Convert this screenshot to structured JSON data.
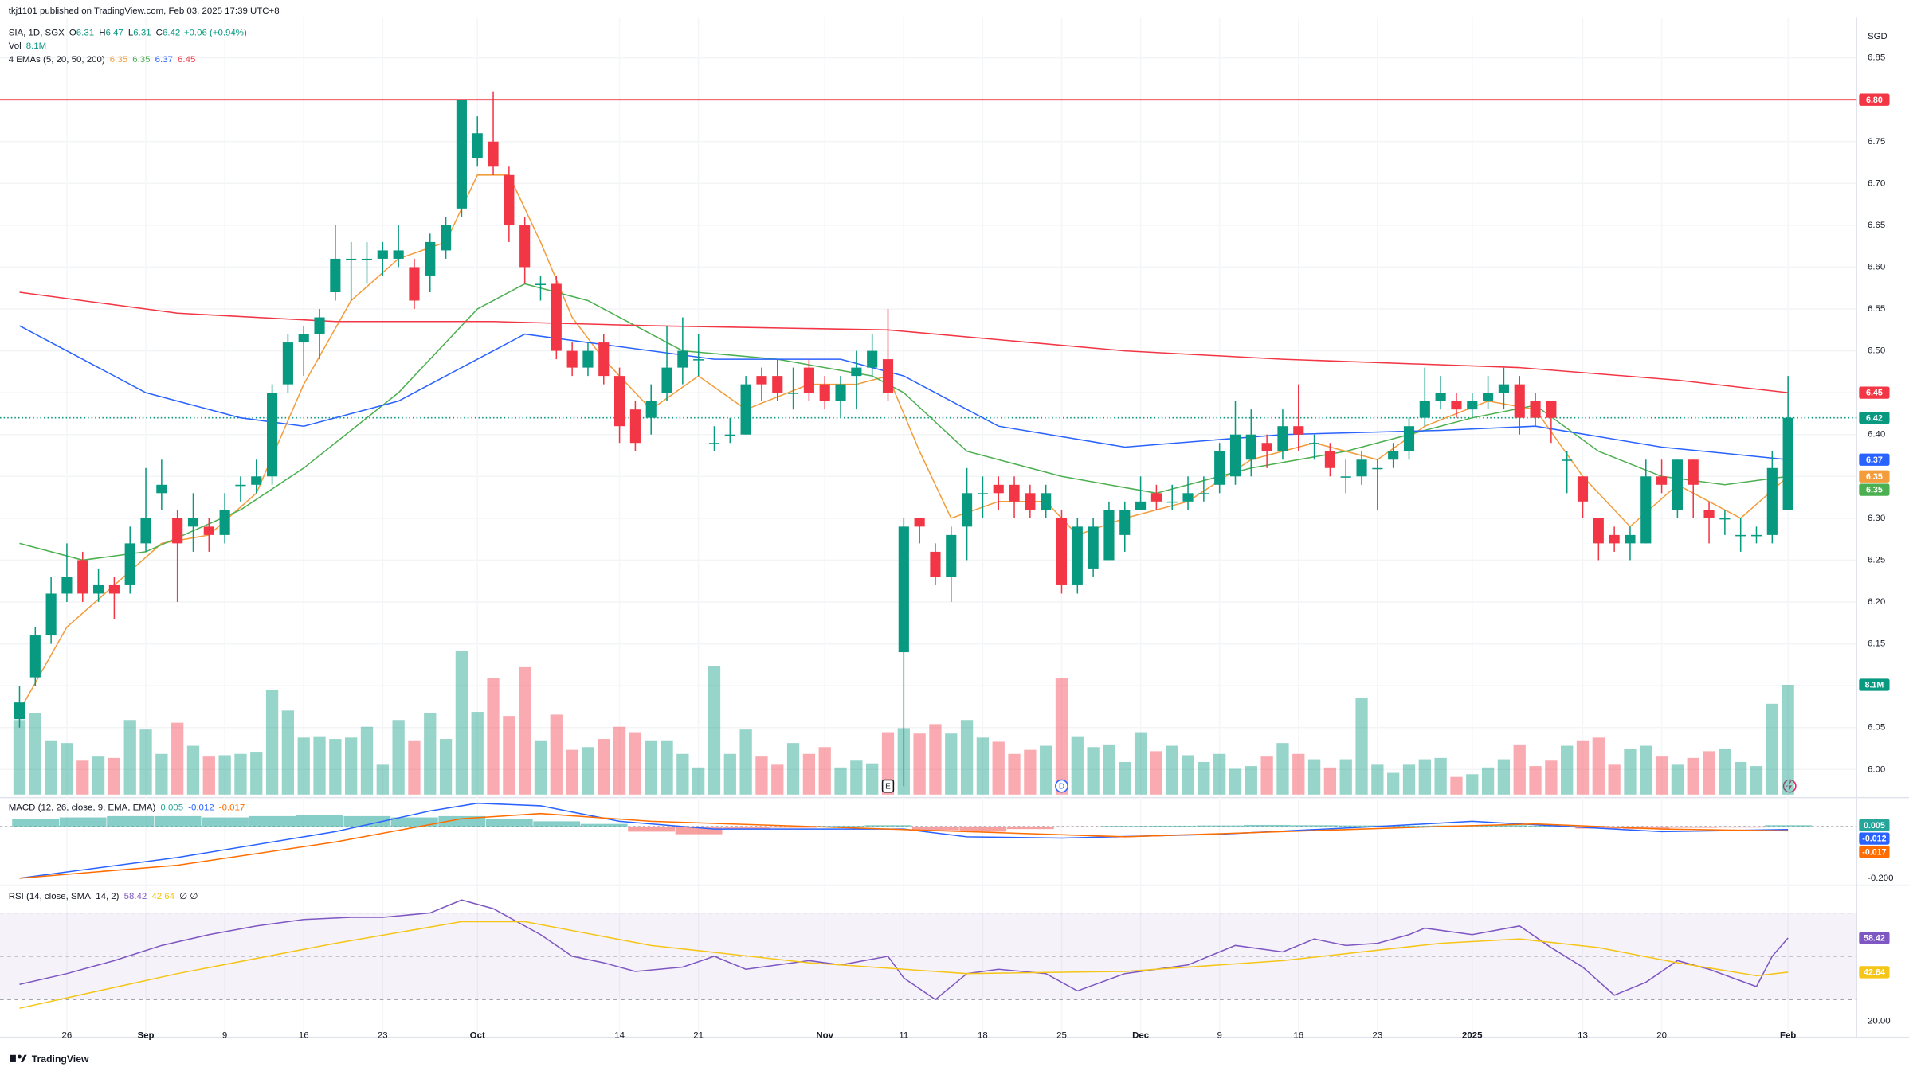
{
  "chart_data": {
    "type": "candlestick",
    "header": "tkj1101 published on TradingView.com, Feb 03, 2025 17:39 UTC+8",
    "symbol": "SIA, 1D, SGX",
    "ohlc_labels": [
      "O",
      "H",
      "L",
      "C"
    ],
    "change": "+0.06 (+0.94%)",
    "currency": "SGD",
    "footer": "TradingView",
    "up_color": "#089981",
    "down_color": "#f23645",
    "grid": true,
    "categories": [
      null,
      null,
      null,
      "26",
      null,
      null,
      null,
      null,
      "Sep",
      null,
      null,
      null,
      null,
      "9",
      null,
      null,
      null,
      null,
      "16",
      null,
      null,
      null,
      null,
      "23",
      null,
      null,
      null,
      null,
      null,
      "Oct",
      null,
      null,
      null,
      null,
      null,
      null,
      null,
      null,
      "14",
      null,
      null,
      null,
      null,
      "21",
      null,
      null,
      null,
      null,
      null,
      null,
      null,
      "Nov",
      null,
      null,
      null,
      null,
      "11",
      null,
      null,
      null,
      null,
      "18",
      null,
      null,
      null,
      null,
      "25",
      null,
      null,
      null,
      null,
      "Dec",
      null,
      null,
      null,
      null,
      "9",
      null,
      null,
      null,
      null,
      "16",
      null,
      null,
      null,
      null,
      "23",
      null,
      null,
      null,
      null,
      null,
      "2025",
      null,
      null,
      null,
      null,
      null,
      null,
      "13",
      null,
      null,
      null,
      null,
      "20",
      null,
      null,
      null,
      null,
      null,
      null,
      null,
      "Feb"
    ],
    "open": [
      6.06,
      6.11,
      6.16,
      6.21,
      6.25,
      6.21,
      6.22,
      6.22,
      6.27,
      6.33,
      6.3,
      6.29,
      6.29,
      6.28,
      6.34,
      6.34,
      6.35,
      6.46,
      6.51,
      6.52,
      6.57,
      6.61,
      6.61,
      6.61,
      6.61,
      6.6,
      6.59,
      6.62,
      6.67,
      6.73,
      6.75,
      6.71,
      6.65,
      6.58,
      6.58,
      6.5,
      6.48,
      6.51,
      6.47,
      6.43,
      6.42,
      6.45,
      6.48,
      6.49,
      6.39,
      6.4,
      6.4,
      6.47,
      6.47,
      6.45,
      6.48,
      6.46,
      6.44,
      6.47,
      6.48,
      6.49,
      6.14,
      6.3,
      6.26,
      6.23,
      6.29,
      6.33,
      6.34,
      6.34,
      6.33,
      6.31,
      6.3,
      6.22,
      6.24,
      6.25,
      6.28,
      6.31,
      6.33,
      6.32,
      6.32,
      6.33,
      6.34,
      6.35,
      6.37,
      6.39,
      6.38,
      6.41,
      6.39,
      6.38,
      6.35,
      6.35,
      6.36,
      6.37,
      6.38,
      6.42,
      6.44,
      6.44,
      6.43,
      6.44,
      6.45,
      6.46,
      6.44,
      6.44,
      6.37,
      6.35,
      6.3,
      6.28,
      6.27,
      6.27,
      6.35,
      6.31,
      6.37,
      6.31,
      6.3,
      6.28,
      6.28,
      6.28,
      6.31
    ],
    "high": [
      6.1,
      6.17,
      6.23,
      6.27,
      6.26,
      6.24,
      6.23,
      6.29,
      6.36,
      6.37,
      6.31,
      6.33,
      6.3,
      6.33,
      6.35,
      6.37,
      6.46,
      6.52,
      6.53,
      6.55,
      6.65,
      6.63,
      6.63,
      6.63,
      6.65,
      6.61,
      6.64,
      6.66,
      6.8,
      6.78,
      6.81,
      6.72,
      6.66,
      6.59,
      6.59,
      6.51,
      6.51,
      6.52,
      6.48,
      6.44,
      6.46,
      6.53,
      6.54,
      6.52,
      6.41,
      6.42,
      6.47,
      6.48,
      6.49,
      6.48,
      6.49,
      6.47,
      6.47,
      6.5,
      6.52,
      6.55,
      6.3,
      6.3,
      6.27,
      6.29,
      6.36,
      6.35,
      6.35,
      6.35,
      6.34,
      6.34,
      6.31,
      6.3,
      6.3,
      6.32,
      6.32,
      6.35,
      6.34,
      6.34,
      6.35,
      6.35,
      6.39,
      6.44,
      6.43,
      6.4,
      6.43,
      6.46,
      6.4,
      6.39,
      6.37,
      6.38,
      6.37,
      6.39,
      6.42,
      6.48,
      6.47,
      6.45,
      6.45,
      6.47,
      6.48,
      6.47,
      6.45,
      6.44,
      6.38,
      6.35,
      6.3,
      6.29,
      6.29,
      6.37,
      6.37,
      6.37,
      6.37,
      6.32,
      6.31,
      6.3,
      6.29,
      6.38,
      6.47
    ],
    "low": [
      6.05,
      6.1,
      6.15,
      6.2,
      6.2,
      6.2,
      6.18,
      6.21,
      6.26,
      6.31,
      6.2,
      6.26,
      6.26,
      6.27,
      6.32,
      6.33,
      6.34,
      6.45,
      6.47,
      6.49,
      6.56,
      6.56,
      6.58,
      6.59,
      6.6,
      6.55,
      6.57,
      6.61,
      6.66,
      6.72,
      6.71,
      6.63,
      6.58,
      6.56,
      6.49,
      6.47,
      6.47,
      6.46,
      6.39,
      6.38,
      6.4,
      6.44,
      6.46,
      6.47,
      6.38,
      6.39,
      6.4,
      6.44,
      6.44,
      6.43,
      6.44,
      6.43,
      6.42,
      6.43,
      6.47,
      6.44,
      5.98,
      6.27,
      6.22,
      6.2,
      6.25,
      6.3,
      6.31,
      6.3,
      6.3,
      6.3,
      6.21,
      6.21,
      6.23,
      6.25,
      6.26,
      6.31,
      6.31,
      6.31,
      6.31,
      6.32,
      6.33,
      6.34,
      6.35,
      6.36,
      6.37,
      6.38,
      6.37,
      6.35,
      6.33,
      6.34,
      6.31,
      6.36,
      6.37,
      6.41,
      6.43,
      6.42,
      6.42,
      6.43,
      6.43,
      6.4,
      6.41,
      6.39,
      6.33,
      6.3,
      6.25,
      6.26,
      6.25,
      6.27,
      6.33,
      6.3,
      6.3,
      6.27,
      6.28,
      6.26,
      6.27,
      6.27,
      6.31
    ],
    "close": [
      6.08,
      6.16,
      6.21,
      6.23,
      6.21,
      6.22,
      6.21,
      6.27,
      6.3,
      6.34,
      6.27,
      6.3,
      6.28,
      6.31,
      6.34,
      6.35,
      6.45,
      6.51,
      6.52,
      6.54,
      6.61,
      6.61,
      6.61,
      6.62,
      6.62,
      6.56,
      6.63,
      6.65,
      6.8,
      6.76,
      6.72,
      6.65,
      6.6,
      6.58,
      6.5,
      6.48,
      6.5,
      6.47,
      6.41,
      6.39,
      6.44,
      6.48,
      6.5,
      6.49,
      6.39,
      6.4,
      6.46,
      6.46,
      6.45,
      6.45,
      6.45,
      6.44,
      6.46,
      6.48,
      6.5,
      6.45,
      6.29,
      6.29,
      6.23,
      6.28,
      6.33,
      6.33,
      6.33,
      6.32,
      6.31,
      6.33,
      6.22,
      6.29,
      6.29,
      6.31,
      6.31,
      6.32,
      6.32,
      6.32,
      6.33,
      6.33,
      6.38,
      6.4,
      6.4,
      6.38,
      6.41,
      6.4,
      6.39,
      6.36,
      6.35,
      6.37,
      6.36,
      6.38,
      6.41,
      6.44,
      6.45,
      6.43,
      6.44,
      6.45,
      6.46,
      6.42,
      6.42,
      6.42,
      6.37,
      6.32,
      6.27,
      6.27,
      6.28,
      6.35,
      6.34,
      6.37,
      6.34,
      6.3,
      6.3,
      6.28,
      6.28,
      6.36,
      6.42
    ],
    "ylim": [
      5.97,
      6.89
    ],
    "yticks": [
      6.85,
      {
        "value": 6.8,
        "label": "6.80"
      },
      6.75,
      {
        "value": 6.7,
        "label": "6.70"
      },
      6.65,
      {
        "value": 6.6,
        "label": "6.60"
      },
      6.55,
      {
        "value": 6.5,
        "label": "6.50"
      },
      6.45,
      {
        "value": 6.4,
        "label": "6.40"
      },
      6.35,
      {
        "value": 6.3,
        "label": "6.30"
      },
      6.25,
      {
        "value": 6.2,
        "label": "6.20"
      },
      6.15,
      {
        "value": 6.1,
        "label": "6.10"
      },
      6.05,
      {
        "value": 6,
        "label": "6.00"
      }
    ],
    "level": {
      "value": 6.8,
      "label": "6.80",
      "color": "#f23645"
    },
    "volume": {
      "name": "Vol",
      "value_label": "8.1M",
      "values": [
        5.5,
        6.0,
        4.0,
        3.8,
        2.5,
        2.8,
        2.7,
        5.5,
        4.8,
        3.0,
        5.3,
        3.6,
        2.8,
        2.9,
        3.0,
        3.1,
        7.7,
        6.2,
        4.2,
        4.3,
        4.1,
        4.2,
        5.0,
        2.2,
        5.5,
        4.0,
        6.0,
        4.1,
        10.6,
        6.1,
        8.6,
        5.8,
        9.4,
        4.0,
        5.9,
        3.3,
        3.5,
        4.1,
        5.0,
        4.6,
        4.0,
        4.0,
        3.0,
        2.0,
        9.5,
        3.0,
        4.8,
        2.8,
        2.2,
        3.8,
        3.0,
        3.5,
        2.0,
        2.5,
        2.3,
        4.6,
        4.9,
        4.5,
        5.2,
        4.5,
        5.5,
        4.2,
        3.9,
        3.0,
        3.3,
        3.6,
        8.6,
        4.3,
        3.5,
        3.7,
        2.4,
        4.6,
        3.2,
        3.6,
        2.9,
        2.4,
        3.0,
        1.9,
        2.1,
        2.8,
        3.8,
        3.0,
        2.6,
        2.0,
        2.6,
        7.1,
        2.2,
        1.6,
        2.2,
        2.6,
        2.7,
        1.3,
        1.5,
        2.0,
        2.6,
        3.7,
        2.1,
        2.5,
        3.6,
        4.0,
        4.2,
        2.2,
        3.4,
        3.6,
        2.8,
        2.2,
        2.7,
        3.2,
        3.4,
        2.4,
        2.1,
        6.7,
        8.1
      ]
    },
    "ema": {
      "name": "4 EMAs (5, 20, 50, 200)",
      "series": [
        {
          "color": "#f39c3c",
          "x": [
            0,
            3,
            6,
            9,
            12,
            15,
            18,
            21,
            24,
            27,
            29,
            31,
            33,
            35,
            37,
            40,
            43,
            46,
            50,
            53,
            55,
            57,
            59,
            62,
            65,
            67,
            70,
            74,
            78,
            82,
            86,
            89,
            93,
            96,
            99,
            102,
            105,
            109,
            112
          ],
          "values": [
            6.07,
            6.17,
            6.22,
            6.27,
            6.28,
            6.33,
            6.46,
            6.56,
            6.61,
            6.63,
            6.71,
            6.71,
            6.63,
            6.54,
            6.49,
            6.43,
            6.47,
            6.43,
            6.46,
            6.46,
            6.47,
            6.38,
            6.3,
            6.32,
            6.32,
            6.28,
            6.3,
            6.32,
            6.37,
            6.39,
            6.37,
            6.41,
            6.44,
            6.43,
            6.35,
            6.29,
            6.34,
            6.3,
            6.35
          ]
        },
        {
          "color": "#4caf50",
          "x": [
            0,
            4,
            8,
            14,
            18,
            24,
            29,
            32,
            36,
            42,
            48,
            54,
            56,
            60,
            66,
            72,
            78,
            84,
            92,
            96,
            100,
            104,
            108,
            112
          ],
          "values": [
            6.27,
            6.25,
            6.26,
            6.31,
            6.36,
            6.45,
            6.55,
            6.58,
            6.56,
            6.5,
            6.49,
            6.47,
            6.45,
            6.38,
            6.35,
            6.33,
            6.36,
            6.38,
            6.42,
            6.435,
            6.38,
            6.35,
            6.34,
            6.35
          ]
        },
        {
          "color": "#2962ff",
          "x": [
            0,
            8,
            14,
            18,
            24,
            29,
            32,
            36,
            44,
            52,
            56,
            62,
            70,
            80,
            90,
            96,
            104,
            112
          ],
          "values": [
            6.53,
            6.45,
            6.42,
            6.41,
            6.44,
            6.49,
            6.52,
            6.51,
            6.49,
            6.49,
            6.47,
            6.41,
            6.385,
            6.4,
            6.405,
            6.41,
            6.385,
            6.37
          ]
        },
        {
          "color": "#f23645",
          "x": [
            0,
            10,
            20,
            30,
            40,
            55,
            70,
            80,
            95,
            105,
            112
          ],
          "values": [
            6.57,
            6.545,
            6.535,
            6.535,
            6.53,
            6.525,
            6.5,
            6.49,
            6.48,
            6.465,
            6.45
          ]
        }
      ]
    },
    "events": [
      {
        "x": 55,
        "label": "E"
      },
      {
        "x": 66,
        "label": "D"
      }
    ],
    "macd": {
      "title": "MACD (12, 26, close, 9, EMA, EMA)",
      "ylim": [
        -0.22,
        0.1
      ],
      "yticks": [
        {
          "value": -0.2,
          "label": "-0.200"
        }
      ],
      "histogram": {
        "up_color": "#26a69a",
        "down_color": "#ef5350",
        "x": [
          1,
          4,
          7,
          10,
          13,
          16,
          19,
          22,
          25,
          28,
          31,
          34,
          37,
          40,
          43,
          46,
          49,
          52,
          55,
          58,
          61,
          64,
          67,
          70,
          73,
          76,
          79,
          82,
          85,
          88,
          91,
          94,
          97,
          100,
          103,
          106,
          109,
          112
        ],
        "values": [
          0.03,
          0.035,
          0.04,
          0.04,
          0.035,
          0.04,
          0.045,
          0.04,
          0.035,
          0.04,
          0.03,
          0.02,
          0.01,
          -0.02,
          -0.03,
          -0.01,
          -0.005,
          0.002,
          0.005,
          -0.015,
          -0.02,
          -0.01,
          -0.003,
          0.002,
          0.003,
          0.004,
          0.006,
          0.005,
          0.004,
          0.003,
          0.004,
          0.005,
          0.003,
          -0.008,
          -0.01,
          -0.005,
          -0.004,
          0.005
        ]
      },
      "series": [
        {
          "color": "#2962ff",
          "x": [
            0,
            10,
            20,
            26,
            29,
            33,
            38,
            44,
            56,
            60,
            66,
            76,
            86,
            92,
            98,
            104,
            112
          ],
          "values": [
            -0.2,
            -0.12,
            -0.02,
            0.06,
            0.09,
            0.08,
            0.02,
            -0.01,
            -0.01,
            -0.04,
            -0.045,
            -0.03,
            0,
            0.02,
            0,
            -0.02,
            -0.012
          ]
        },
        {
          "color": "#ff6d00",
          "x": [
            0,
            10,
            20,
            28,
            33,
            40,
            50,
            60,
            70,
            80,
            90,
            96,
            104,
            112
          ],
          "values": [
            -0.2,
            -0.15,
            -0.06,
            0.03,
            0.05,
            0.02,
            0,
            -0.02,
            -0.04,
            -0.02,
            0,
            0.01,
            -0.01,
            -0.017
          ]
        }
      ]
    },
    "rsi": {
      "title": "RSI (14, close, SMA, 14, 2)",
      "extra": "∅ ∅",
      "ylim": [
        14,
        82
      ],
      "yticks": [
        {
          "value": 20,
          "label": "20.00"
        }
      ],
      "levels": [
        70,
        50,
        30
      ],
      "series": [
        {
          "color": "#7e57c2",
          "x": [
            0,
            3,
            6,
            9,
            12,
            15,
            18,
            21,
            23,
            26,
            28,
            30,
            31,
            33,
            35,
            37,
            39,
            42,
            44,
            46,
            50,
            52,
            55,
            56,
            58,
            60,
            62,
            65,
            67,
            70,
            74,
            77,
            80,
            82,
            84,
            86,
            88,
            89,
            92,
            95,
            97,
            99,
            101,
            103,
            105,
            107,
            110,
            111,
            112
          ],
          "values": [
            37,
            42,
            48,
            55,
            60,
            64,
            67,
            68,
            68,
            70,
            76,
            72,
            68,
            60,
            50,
            47,
            43,
            45,
            50,
            44,
            48,
            46,
            50,
            40,
            30,
            42,
            44,
            42,
            34,
            42,
            46,
            55,
            52,
            58,
            55,
            56,
            60,
            63,
            60,
            64,
            54,
            45,
            32,
            38,
            48,
            44,
            36,
            50,
            58.42
          ]
        },
        {
          "color": "#f5c518",
          "x": [
            0,
            10,
            20,
            28,
            32,
            40,
            50,
            60,
            70,
            80,
            90,
            95,
            100,
            105,
            110,
            112
          ],
          "values": [
            26,
            42,
            56,
            66,
            66,
            55,
            47,
            42,
            43,
            48,
            56,
            58,
            54,
            47,
            41,
            42.64
          ]
        }
      ]
    }
  }
}
